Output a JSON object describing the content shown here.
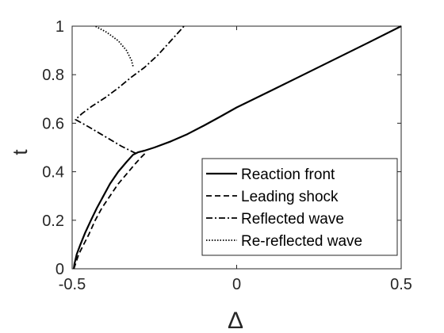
{
  "chart_data": {
    "type": "line",
    "title": "",
    "xlabel": "Δ",
    "ylabel": "t",
    "xlim": [
      -0.5,
      0.5
    ],
    "ylim": [
      0,
      1
    ],
    "x_ticks": [
      "-0.5",
      "0",
      "0.5"
    ],
    "y_ticks": [
      "0",
      "0.2",
      "0.4",
      "0.6",
      "0.8",
      "1"
    ],
    "grid": false,
    "legend_position": "bottom-right",
    "series": [
      {
        "name": "Reaction front",
        "style": "solid",
        "color": "#000000",
        "points": [
          [
            -0.495,
            0.0
          ],
          [
            -0.493,
            0.02
          ],
          [
            -0.486,
            0.06
          ],
          [
            -0.475,
            0.1
          ],
          [
            -0.46,
            0.15
          ],
          [
            -0.443,
            0.2
          ],
          [
            -0.425,
            0.25
          ],
          [
            -0.405,
            0.3
          ],
          [
            -0.385,
            0.35
          ],
          [
            -0.36,
            0.4
          ],
          [
            -0.335,
            0.44
          ],
          [
            -0.315,
            0.47
          ],
          [
            -0.3,
            0.48
          ],
          [
            -0.28,
            0.487
          ],
          [
            -0.25,
            0.5
          ],
          [
            -0.2,
            0.525
          ],
          [
            -0.15,
            0.555
          ],
          [
            -0.1,
            0.59
          ],
          [
            -0.05,
            0.627
          ],
          [
            0.0,
            0.665
          ],
          [
            0.1,
            0.731
          ],
          [
            0.2,
            0.798
          ],
          [
            0.3,
            0.865
          ],
          [
            0.4,
            0.932
          ],
          [
            0.5,
            1.0
          ]
        ]
      },
      {
        "name": "Leading shock",
        "style": "dashed",
        "color": "#000000",
        "points": [
          [
            -0.495,
            0.0
          ],
          [
            -0.49,
            0.02
          ],
          [
            -0.48,
            0.06
          ],
          [
            -0.465,
            0.1
          ],
          [
            -0.45,
            0.14
          ],
          [
            -0.43,
            0.2
          ],
          [
            -0.41,
            0.25
          ],
          [
            -0.385,
            0.3
          ],
          [
            -0.36,
            0.35
          ],
          [
            -0.335,
            0.39
          ],
          [
            -0.31,
            0.43
          ],
          [
            -0.29,
            0.46
          ],
          [
            -0.275,
            0.48
          ]
        ]
      },
      {
        "name": "Reflected wave",
        "style": "dashdot",
        "color": "#000000",
        "points": [
          [
            -0.305,
            0.475
          ],
          [
            -0.35,
            0.505
          ],
          [
            -0.4,
            0.545
          ],
          [
            -0.45,
            0.585
          ],
          [
            -0.49,
            0.615
          ],
          [
            -0.47,
            0.64
          ],
          [
            -0.44,
            0.67
          ],
          [
            -0.4,
            0.705
          ],
          [
            -0.36,
            0.745
          ],
          [
            -0.32,
            0.79
          ],
          [
            -0.28,
            0.83
          ],
          [
            -0.24,
            0.88
          ],
          [
            -0.2,
            0.94
          ],
          [
            -0.16,
            1.0
          ]
        ]
      },
      {
        "name": "Re-reflected wave",
        "style": "dotted",
        "color": "#000000",
        "points": [
          [
            -0.315,
            0.835
          ],
          [
            -0.32,
            0.86
          ],
          [
            -0.335,
            0.9
          ],
          [
            -0.36,
            0.94
          ],
          [
            -0.395,
            0.975
          ],
          [
            -0.43,
            1.0
          ]
        ]
      }
    ]
  }
}
